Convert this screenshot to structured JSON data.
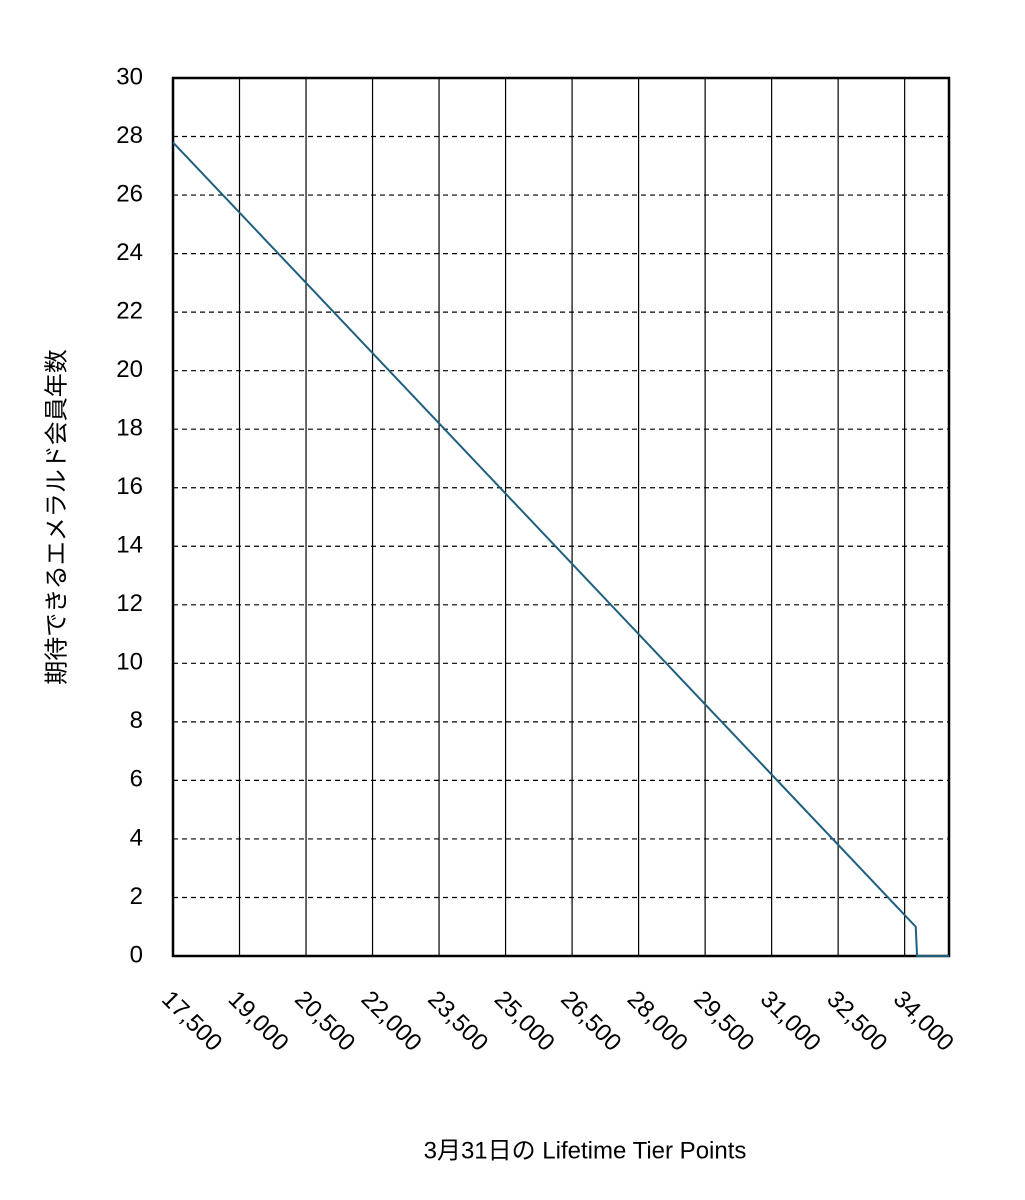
{
  "chart_data": {
    "type": "line",
    "x_label": "3月31日の Lifetime Tier Points",
    "y_label": "期待できるエメラルド会員年数",
    "x": [
      17500,
      34250,
      34280,
      35000
    ],
    "series": [
      {
        "color": "#1f5f7f",
        "values": [
          27.8,
          1.0,
          0,
          0
        ]
      }
    ],
    "xlim": [
      17500,
      35000
    ],
    "xticks": [
      {
        "value": 17500,
        "label": "17,500"
      },
      {
        "value": 19000,
        "label": "19,000"
      },
      {
        "value": 20500,
        "label": "20,500"
      },
      {
        "value": 22000,
        "label": "22,000"
      },
      {
        "value": 23500,
        "label": "23,500"
      },
      {
        "value": 25000,
        "label": "25,000"
      },
      {
        "value": 26500,
        "label": "26,500"
      },
      {
        "value": 28000,
        "label": "28,000"
      },
      {
        "value": 29500,
        "label": "29,500"
      },
      {
        "value": 31000,
        "label": "31,000"
      },
      {
        "value": 32500,
        "label": "32,500"
      },
      {
        "value": 34000,
        "label": "34,000"
      }
    ],
    "ylim": [
      0,
      30
    ],
    "yticks": [
      0,
      2,
      4,
      6,
      8,
      10,
      12,
      14,
      16,
      18,
      20,
      22,
      24,
      26,
      28,
      30
    ],
    "grid": true
  }
}
